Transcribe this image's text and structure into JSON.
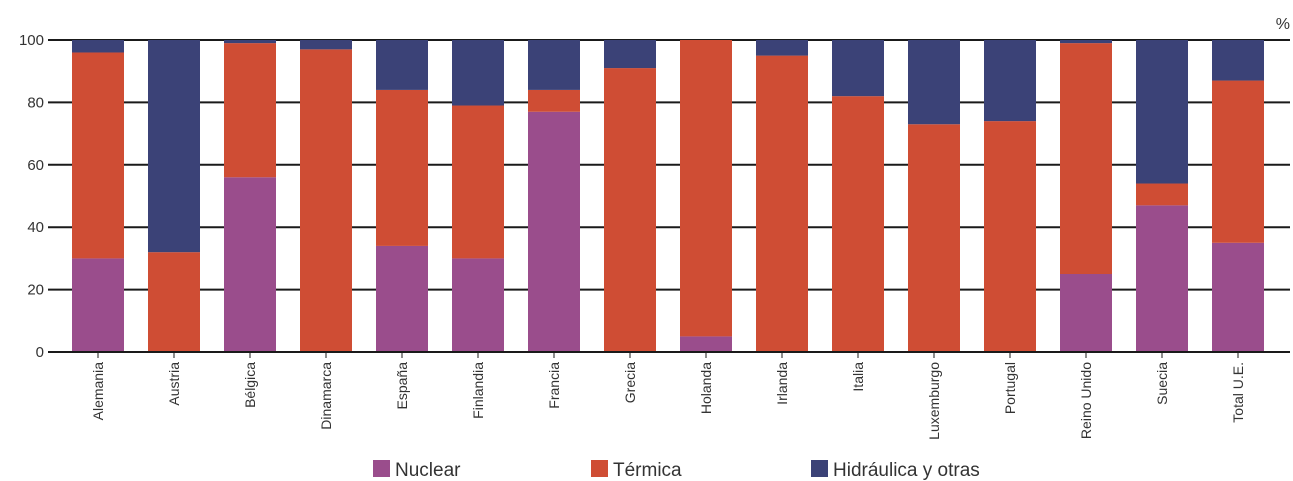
{
  "chart_data": {
    "type": "bar",
    "stacked": true,
    "unit_label": "%",
    "ylim": [
      0,
      100
    ],
    "yticks": [
      0,
      20,
      40,
      60,
      80,
      100
    ],
    "grid": true,
    "legend_position": "bottom-center",
    "categories": [
      "Alemania",
      "Austria",
      "Bélgica",
      "Dinamarca",
      "España",
      "Finlandia",
      "Francia",
      "Grecia",
      "Holanda",
      "Irlanda",
      "Italia",
      "Luxemburgo",
      "Portugal",
      "Reino Unido",
      "Suecia",
      "Total U.E."
    ],
    "series": [
      {
        "name": "Nuclear",
        "color": "#9a4d8c",
        "values": [
          30,
          0,
          56,
          0,
          34,
          30,
          77,
          0,
          5,
          0,
          0,
          0,
          0,
          25,
          47,
          35
        ]
      },
      {
        "name": "Térmica",
        "color": "#cf4d34",
        "values": [
          66,
          32,
          43,
          97,
          50,
          49,
          7,
          91,
          95,
          95,
          82,
          73,
          74,
          74,
          7,
          52
        ]
      },
      {
        "name": "Hidráulica y otras",
        "color": "#3b4277",
        "values": [
          4,
          68,
          1,
          3,
          16,
          21,
          16,
          9,
          0,
          5,
          18,
          27,
          26,
          1,
          46,
          13
        ]
      }
    ]
  }
}
